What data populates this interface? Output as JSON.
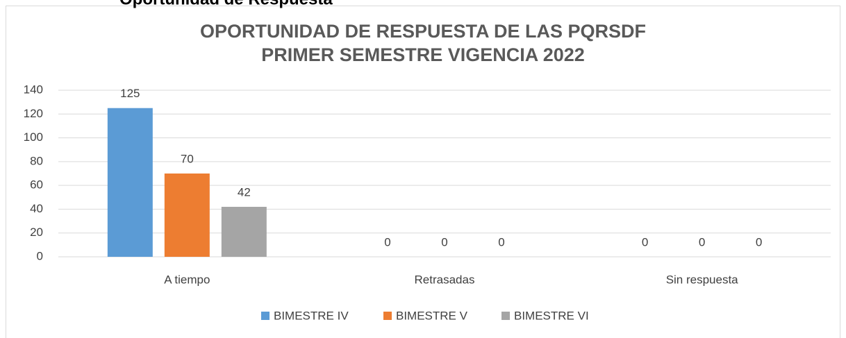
{
  "page_heading": "Oportunidad de Respuesta",
  "chart_data": {
    "type": "bar",
    "title": [
      "OPORTUNIDAD DE RESPUESTA DE LAS PQRSDF",
      "PRIMER SEMESTRE VIGENCIA 2022"
    ],
    "categories": [
      "A tiempo",
      "Retrasadas",
      "Sin respuesta"
    ],
    "series": [
      {
        "name": "BIMESTRE IV",
        "color": "#5b9bd5",
        "values": [
          125,
          0,
          0
        ]
      },
      {
        "name": "BIMESTRE V",
        "color": "#ed7d31",
        "values": [
          70,
          0,
          0
        ]
      },
      {
        "name": "BIMESTRE VI",
        "color": "#a5a5a5",
        "values": [
          42,
          0,
          0
        ]
      }
    ],
    "ylim": [
      0,
      140
    ],
    "yticks": [
      0,
      20,
      40,
      60,
      80,
      100,
      120,
      140
    ],
    "grid": true,
    "legend": "bottom"
  }
}
